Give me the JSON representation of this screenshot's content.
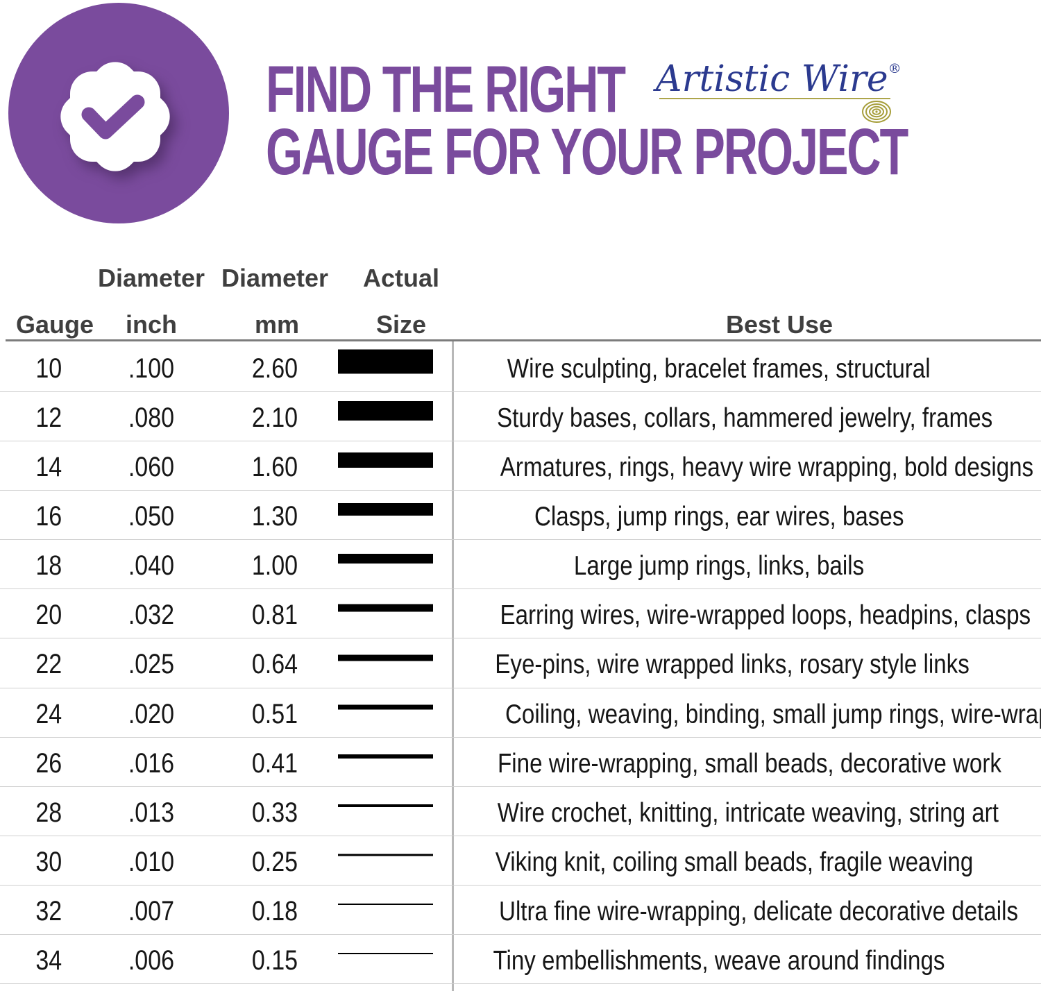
{
  "header": {
    "title_line1": "FIND THE RIGHT",
    "title_line2": "GAUGE FOR YOUR PROJECT",
    "brand_name": "Artistic Wire",
    "brand_registered": "®",
    "badge_icon": "seal-check-icon",
    "spiral_icon": "wire-coil-icon"
  },
  "colors": {
    "purple": "#7A4B9D",
    "brand_blue": "#2B3A8F",
    "brand_gold": "#ADA54B",
    "header_gray": "#3F3F3F",
    "bar_black": "#000000"
  },
  "table": {
    "column_headers": {
      "gauge": {
        "line2": "Gauge"
      },
      "inch": {
        "line1": "Diameter",
        "line2": "inch"
      },
      "mm": {
        "line1": "Diameter",
        "line2": "mm"
      },
      "size": {
        "line1": "Actual",
        "line2": "Size"
      },
      "best_use": {
        "line2": "Best Use"
      }
    },
    "rows": [
      {
        "gauge": "10",
        "inch": ".100",
        "mm": "2.60",
        "best_use": "Wire sculpting, bracelet frames, structural"
      },
      {
        "gauge": "12",
        "inch": ".080",
        "mm": "2.10",
        "best_use": "Sturdy bases, collars, hammered jewelry, frames"
      },
      {
        "gauge": "14",
        "inch": ".060",
        "mm": "1.60",
        "best_use": "Armatures, rings, heavy wire wrapping, bold designs"
      },
      {
        "gauge": "16",
        "inch": ".050",
        "mm": "1.30",
        "best_use": "Clasps, jump rings, ear wires, bases"
      },
      {
        "gauge": "18",
        "inch": ".040",
        "mm": "1.00",
        "best_use": "Large jump rings, links, bails"
      },
      {
        "gauge": "20",
        "inch": ".032",
        "mm": "0.81",
        "best_use": "Earring wires, wire-wrapped loops, headpins, clasps"
      },
      {
        "gauge": "22",
        "inch": ".025",
        "mm": "0.64",
        "best_use": "Eye-pins, wire wrapped links, rosary style links"
      },
      {
        "gauge": "24",
        "inch": ".020",
        "mm": "0.51",
        "best_use": "Coiling, weaving, binding, small jump rings, wire-wrapping"
      },
      {
        "gauge": "26",
        "inch": ".016",
        "mm": "0.41",
        "best_use": "Fine wire-wrapping, small beads, decorative work"
      },
      {
        "gauge": "28",
        "inch": ".013",
        "mm": "0.33",
        "best_use": "Wire crochet, knitting, intricate weaving, string art"
      },
      {
        "gauge": "30",
        "inch": ".010",
        "mm": "0.25",
        "best_use": "Viking knit, coiling small beads, fragile weaving"
      },
      {
        "gauge": "32",
        "inch": ".007",
        "mm": "0.18",
        "best_use": "Ultra fine wire-wrapping, delicate decorative details"
      },
      {
        "gauge": "34",
        "inch": ".006",
        "mm": "0.15",
        "best_use": "Tiny embellishments, weave around findings"
      }
    ]
  }
}
